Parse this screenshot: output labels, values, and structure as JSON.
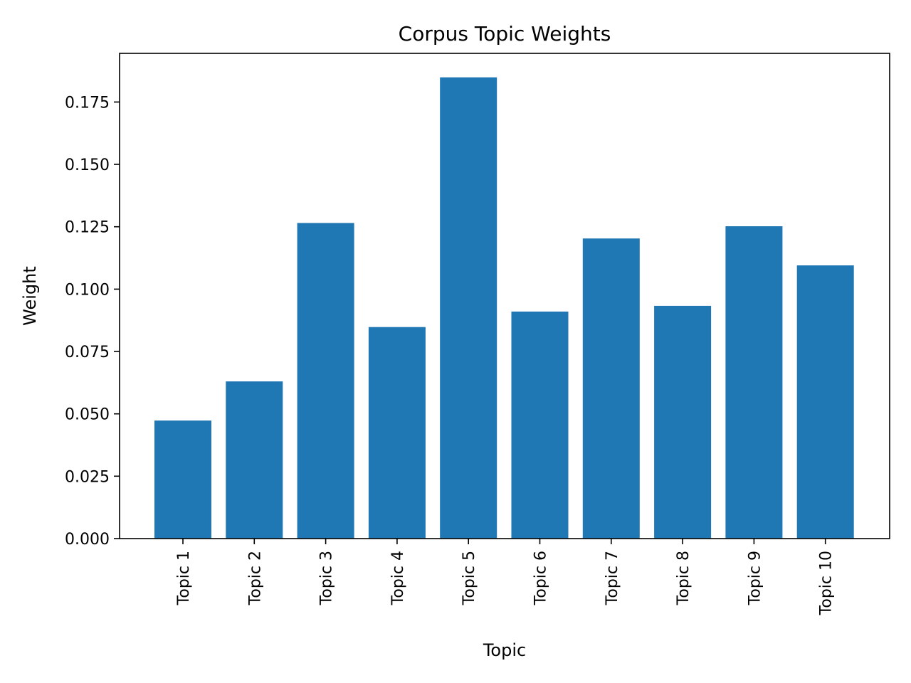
{
  "colors": {
    "bar": "#1f77b4",
    "axis": "#000000",
    "background": "#ffffff"
  },
  "chart_data": {
    "type": "bar",
    "title": "Corpus Topic Weights",
    "xlabel": "Topic",
    "ylabel": "Weight",
    "categories": [
      "Topic 1",
      "Topic 2",
      "Topic 3",
      "Topic 4",
      "Topic 5",
      "Topic 6",
      "Topic 7",
      "Topic 8",
      "Topic 9",
      "Topic 10"
    ],
    "values": [
      0.0473,
      0.063,
      0.1265,
      0.0848,
      0.1849,
      0.091,
      0.1203,
      0.0933,
      0.1252,
      0.1095
    ],
    "ylim": [
      0,
      0.1945
    ],
    "yticks": [
      0.0,
      0.025,
      0.05,
      0.075,
      0.1,
      0.125,
      0.15,
      0.175
    ],
    "ytick_labels": [
      "0.000",
      "0.025",
      "0.050",
      "0.075",
      "0.100",
      "0.125",
      "0.150",
      "0.175"
    ],
    "grid": false,
    "legend": false
  }
}
